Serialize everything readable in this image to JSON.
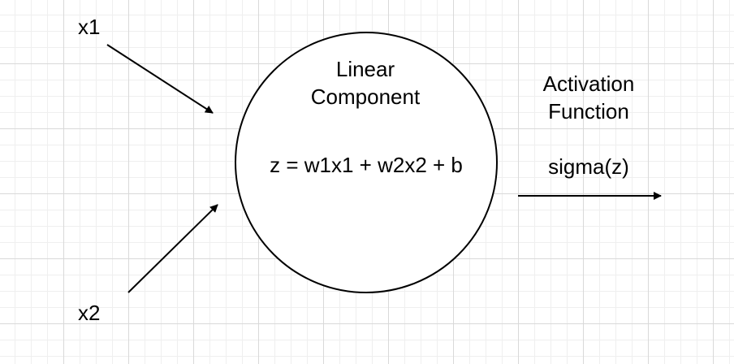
{
  "inputs": {
    "x1_label": "x1",
    "x2_label": "x2"
  },
  "neuron": {
    "title_line1": "Linear",
    "title_line2": "Component",
    "equation": "z = w1x1 + w2x2 +  b"
  },
  "activation": {
    "title_line1": "Activation",
    "title_line2": "Function",
    "formula": "sigma(z)"
  },
  "colors": {
    "stroke": "#000000",
    "background": "#ffffff",
    "grid_major": "#d9d9d9",
    "grid_minor": "#efefef"
  }
}
